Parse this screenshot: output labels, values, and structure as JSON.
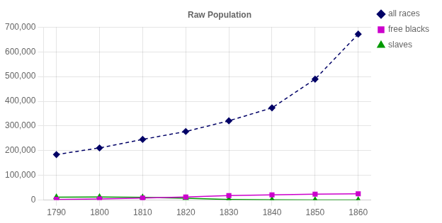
{
  "chart_data": {
    "type": "line",
    "title": "Raw Population",
    "x": [
      1790,
      1800,
      1810,
      1820,
      1830,
      1840,
      1850,
      1860
    ],
    "series": [
      {
        "name": "all races",
        "color": "#000066",
        "marker": "diamond",
        "line_style": "dashed",
        "values": [
          184139,
          211149,
          245562,
          277575,
          320823,
          373306,
          489555,
          672035
        ]
      },
      {
        "name": "free blacks",
        "color": "#cc00cc",
        "marker": "square",
        "line_style": "solid",
        "values": [
          2762,
          4402,
          7843,
          12460,
          18303,
          21044,
          23810,
          25318
        ]
      },
      {
        "name": "slaves",
        "color": "#009900",
        "marker": "triangle",
        "line_style": "solid",
        "values": [
          11423,
          12422,
          10851,
          7557,
          2254,
          674,
          236,
          18
        ]
      }
    ],
    "xlim": [
      1787,
      1863
    ],
    "xticks": [
      1790,
      1800,
      1810,
      1820,
      1830,
      1840,
      1850,
      1860
    ],
    "ylim": [
      0,
      700000
    ],
    "yticks": [
      0,
      {
        "value": 100000,
        "label": "100,000"
      },
      {
        "value": 200000,
        "label": "200,000"
      },
      {
        "value": 300000,
        "label": "300,000"
      },
      {
        "value": 400000,
        "label": "400,000"
      },
      {
        "value": 500000,
        "label": "500,000"
      },
      {
        "value": 600000,
        "label": "600,000"
      },
      {
        "value": 700000,
        "label": "700,000"
      }
    ],
    "grid": true,
    "legend": "right"
  }
}
